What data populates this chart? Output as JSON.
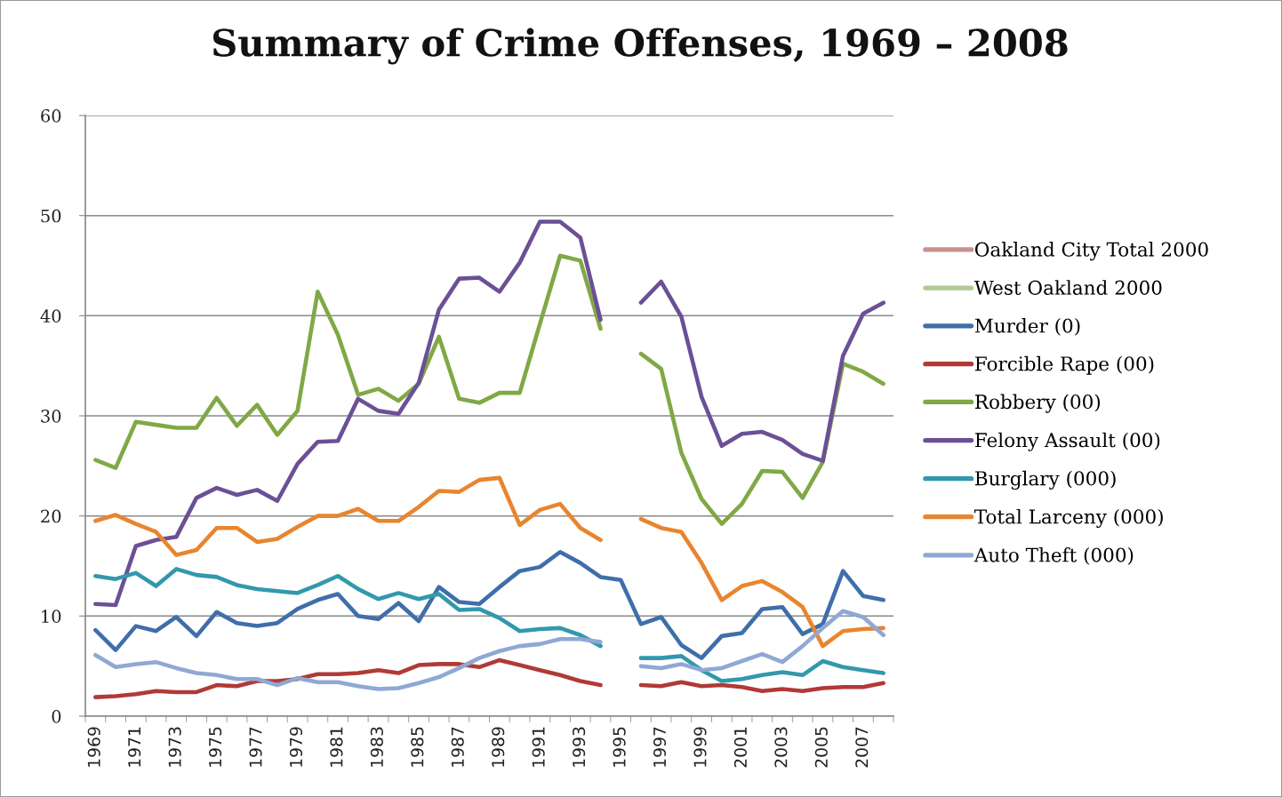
{
  "chart_data": {
    "type": "line",
    "title": "Summary of Crime Offenses, 1969 – 2008",
    "categories": [
      "1969",
      null,
      "1971",
      null,
      "1973",
      null,
      "1975",
      null,
      "1977",
      null,
      "1979",
      null,
      "1981",
      null,
      "1983",
      null,
      "1985",
      null,
      "1987",
      null,
      "1989",
      null,
      "1991",
      null,
      "1993",
      null,
      "1995",
      null,
      "1997",
      null,
      "1999",
      null,
      "2001",
      null,
      "2003",
      null,
      "2005",
      null,
      "2007",
      null
    ],
    "ylim": [
      0,
      60
    ],
    "yticks": [
      0,
      10,
      20,
      30,
      40,
      50,
      60
    ],
    "grid": "y",
    "legend": "right",
    "series": [
      {
        "name": "Oakland City Total 2000",
        "color": "#c9908f",
        "values": [
          null,
          null,
          null,
          null,
          null,
          null,
          null,
          null,
          null,
          null,
          null,
          null,
          null,
          null,
          null,
          null,
          null,
          null,
          null,
          null,
          null,
          null,
          null,
          null,
          null,
          null,
          null,
          null,
          null,
          null,
          null,
          null,
          null,
          null,
          null,
          null,
          null,
          null,
          null,
          null
        ]
      },
      {
        "name": "West Oakland 2000",
        "color": "#b3c994",
        "values": [
          null,
          null,
          null,
          null,
          null,
          null,
          null,
          null,
          null,
          null,
          null,
          null,
          null,
          null,
          null,
          null,
          null,
          null,
          null,
          null,
          null,
          null,
          null,
          null,
          null,
          null,
          null,
          null,
          null,
          null,
          null,
          null,
          null,
          null,
          null,
          null,
          null,
          null,
          null,
          null
        ]
      },
      {
        "name": "Murder (0)",
        "color": "#3f6eaa",
        "values": [
          8.6,
          6.6,
          9.0,
          8.5,
          9.9,
          8.0,
          10.4,
          9.3,
          9.0,
          9.3,
          10.7,
          11.6,
          12.2,
          10.0,
          9.7,
          11.3,
          9.5,
          12.9,
          11.4,
          11.2,
          12.9,
          14.5,
          14.9,
          16.4,
          15.3,
          13.9,
          13.6,
          9.2,
          9.9,
          7.1,
          5.8,
          8.0,
          8.3,
          10.7,
          10.9,
          8.2,
          9.2,
          14.5,
          12.0,
          11.6
        ]
      },
      {
        "name": "Forcible Rape (00)",
        "color": "#b03a38",
        "values": [
          1.9,
          2.0,
          2.2,
          2.5,
          2.4,
          2.4,
          3.1,
          3.0,
          3.5,
          3.5,
          3.7,
          4.2,
          4.2,
          4.3,
          4.6,
          4.3,
          5.1,
          5.2,
          5.2,
          4.9,
          5.6,
          5.1,
          4.6,
          4.1,
          3.5,
          3.1,
          null,
          3.1,
          3.0,
          3.4,
          3.0,
          3.1,
          2.9,
          2.5,
          2.7,
          2.5,
          2.8,
          2.9,
          2.9,
          3.3
        ]
      },
      {
        "name": "Robbery (00)",
        "color": "#80a845",
        "values": [
          25.6,
          24.8,
          29.4,
          29.1,
          28.8,
          28.8,
          31.8,
          29.0,
          31.1,
          28.1,
          30.5,
          42.4,
          38.1,
          32.1,
          32.7,
          31.5,
          33.2,
          37.9,
          31.7,
          31.3,
          32.3,
          32.3,
          39.2,
          46.0,
          45.5,
          38.7,
          null,
          36.2,
          34.7,
          26.3,
          21.7,
          19.2,
          21.2,
          24.5,
          24.4,
          21.8,
          25.4,
          35.2,
          34.4,
          33.2
        ]
      },
      {
        "name": "Felony Assault (00)",
        "color": "#6b5096",
        "values": [
          11.2,
          11.1,
          17.0,
          17.6,
          17.9,
          21.8,
          22.8,
          22.1,
          22.6,
          21.5,
          25.2,
          27.4,
          27.5,
          31.7,
          30.5,
          30.2,
          33.3,
          40.6,
          43.7,
          43.8,
          42.4,
          45.3,
          49.4,
          49.4,
          47.8,
          39.6,
          null,
          41.3,
          43.4,
          39.9,
          31.9,
          27.0,
          28.2,
          28.4,
          27.6,
          26.2,
          25.5,
          36.0,
          40.2,
          41.3
        ]
      },
      {
        "name": "Burglary (000)",
        "color": "#3298ad",
        "values": [
          14.0,
          13.7,
          14.3,
          13.0,
          14.7,
          14.1,
          13.9,
          13.1,
          12.7,
          12.5,
          12.3,
          13.1,
          14.0,
          12.7,
          11.7,
          12.3,
          11.7,
          12.2,
          10.6,
          10.7,
          9.8,
          8.5,
          8.7,
          8.8,
          8.1,
          7.0,
          null,
          5.8,
          5.8,
          6.0,
          4.6,
          3.5,
          3.7,
          4.1,
          4.4,
          4.1,
          5.5,
          4.9,
          4.6,
          4.3
        ]
      },
      {
        "name": "Total Larceny (000)",
        "color": "#e8852f",
        "values": [
          19.5,
          20.1,
          19.2,
          18.4,
          16.1,
          16.6,
          18.8,
          18.8,
          17.4,
          17.7,
          18.9,
          20.0,
          20.0,
          20.7,
          19.5,
          19.5,
          20.9,
          22.5,
          22.4,
          23.6,
          23.8,
          19.1,
          20.6,
          21.2,
          18.8,
          17.6,
          null,
          19.7,
          18.8,
          18.4,
          15.3,
          11.6,
          13.0,
          13.5,
          12.4,
          10.9,
          7.0,
          8.5,
          8.7,
          8.8
        ]
      },
      {
        "name": "Auto Theft (000)",
        "color": "#8fa8d4",
        "values": [
          6.1,
          4.9,
          5.2,
          5.4,
          4.8,
          4.3,
          4.1,
          3.7,
          3.7,
          3.1,
          3.8,
          3.4,
          3.4,
          3.0,
          2.7,
          2.8,
          3.3,
          3.9,
          4.8,
          5.8,
          6.5,
          7.0,
          7.2,
          7.7,
          7.7,
          7.4,
          null,
          5.0,
          4.8,
          5.2,
          4.6,
          4.8,
          5.5,
          6.2,
          5.4,
          7.0,
          8.8,
          10.5,
          9.9,
          8.1
        ]
      }
    ]
  }
}
